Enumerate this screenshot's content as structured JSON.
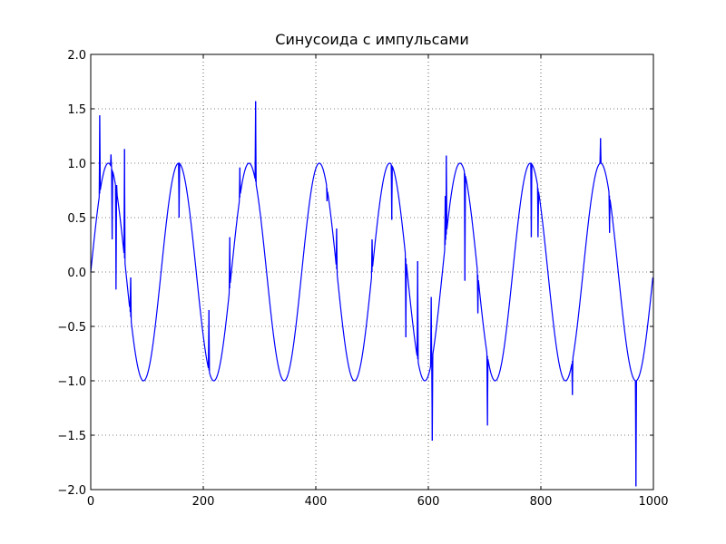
{
  "chart_data": {
    "type": "line",
    "title": "Синусоида с импульсами",
    "xlabel": "",
    "ylabel": "",
    "xlim": [
      0,
      1000
    ],
    "ylim": [
      -2.0,
      2.0
    ],
    "grid": true,
    "grid_style": "dotted",
    "line_color": "#0000ff",
    "x_ticks": [
      0,
      200,
      400,
      600,
      800,
      1000
    ],
    "x_tick_labels": [
      "0",
      "200",
      "400",
      "600",
      "800",
      "1000"
    ],
    "y_ticks": [
      -2.0,
      -1.5,
      -1.0,
      -0.5,
      0.0,
      0.5,
      1.0,
      1.5,
      2.0
    ],
    "y_tick_labels": [
      "−2.0",
      "−1.5",
      "−1.0",
      "−0.5",
      "0.0",
      "0.5",
      "1.0",
      "1.5",
      "2.0"
    ],
    "series": [
      {
        "period": 125,
        "amplitude": 1.0,
        "n_samples": 1000,
        "impulses": [
          {
            "x": 16,
            "y": 1.44
          },
          {
            "x": 36,
            "y": 1.08
          },
          {
            "x": 38,
            "y": 0.3
          },
          {
            "x": 45,
            "y": -0.16
          },
          {
            "x": 46,
            "y": 0.8
          },
          {
            "x": 60,
            "y": 1.13
          },
          {
            "x": 70,
            "y": -0.28
          },
          {
            "x": 71,
            "y": -0.05
          },
          {
            "x": 157,
            "y": 0.5
          },
          {
            "x": 210,
            "y": -0.35
          },
          {
            "x": 246,
            "y": -0.2
          },
          {
            "x": 247,
            "y": 0.32
          },
          {
            "x": 265,
            "y": 0.96
          },
          {
            "x": 293,
            "y": 1.57
          },
          {
            "x": 420,
            "y": 0.65
          },
          {
            "x": 436,
            "y": 0.07
          },
          {
            "x": 437,
            "y": 0.4
          },
          {
            "x": 500,
            "y": 0.3
          },
          {
            "x": 535,
            "y": 0.48
          },
          {
            "x": 560,
            "y": -0.6
          },
          {
            "x": 581,
            "y": 0.1
          },
          {
            "x": 605,
            "y": -0.23
          },
          {
            "x": 607,
            "y": -1.55
          },
          {
            "x": 630,
            "y": 0.7
          },
          {
            "x": 632,
            "y": 1.07
          },
          {
            "x": 665,
            "y": -0.08
          },
          {
            "x": 688,
            "y": -0.38
          },
          {
            "x": 705,
            "y": -1.41
          },
          {
            "x": 783,
            "y": 0.32
          },
          {
            "x": 795,
            "y": 0.32
          },
          {
            "x": 856,
            "y": -1.13
          },
          {
            "x": 906,
            "y": 1.23
          },
          {
            "x": 922,
            "y": 0.36
          },
          {
            "x": 969,
            "y": -1.97
          }
        ]
      }
    ]
  }
}
